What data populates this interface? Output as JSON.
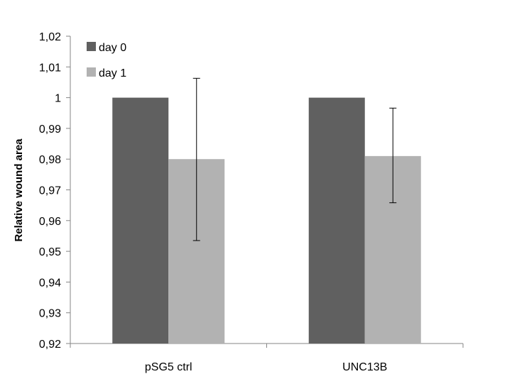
{
  "chart_data": {
    "type": "bar",
    "title": "",
    "xlabel": "",
    "ylabel": "Relative wound area",
    "ylim": [
      0.92,
      1.02
    ],
    "ytick_step": 0.01,
    "ytick_labels": [
      "0,92",
      "0,93",
      "0,94",
      "0,95",
      "0,96",
      "0,97",
      "0,98",
      "0,99",
      "1",
      "1,01",
      "1,02"
    ],
    "categories": [
      "pSG5 ctrl",
      "UNC13B"
    ],
    "series": [
      {
        "name": "day 0",
        "color": "#606060",
        "values": [
          1.0,
          1.0
        ],
        "errors": [
          null,
          null
        ]
      },
      {
        "name": "day 1",
        "color": "#b2b2b2",
        "values": [
          0.98,
          0.981
        ],
        "errors": [
          [
            0.9535,
            1.0063
          ],
          [
            0.9658,
            0.9966
          ]
        ]
      }
    ],
    "legend_position": "top-left",
    "grid": false
  }
}
